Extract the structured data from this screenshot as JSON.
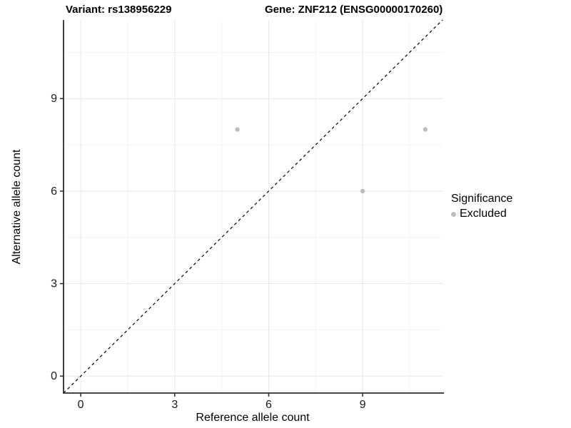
{
  "titles": {
    "variant": "Variant: rs138956229",
    "gene": "Gene: ZNF212 (ENSG00000170260)"
  },
  "legend": {
    "title": "Significance",
    "items": [
      {
        "label": "Excluded",
        "color": "#bdbdbd"
      }
    ]
  },
  "chart_data": {
    "type": "scatter",
    "title": "Variant: rs138956229 | Gene: ZNF212 (ENSG00000170260)",
    "xlabel": "Reference allele count",
    "ylabel": "Alternative allele count",
    "series": [
      {
        "name": "Excluded",
        "color": "#bdbdbd",
        "points": [
          [
            5,
            8
          ],
          [
            9,
            6
          ],
          [
            11,
            8
          ]
        ]
      }
    ],
    "x_ticks": [
      0,
      3,
      6,
      9
    ],
    "y_ticks": [
      0,
      3,
      6,
      9
    ],
    "x_minor_ticks": [
      1.5,
      4.5,
      7.5,
      10.5
    ],
    "y_minor_ticks": [
      1.5,
      4.5,
      7.5,
      10.5
    ],
    "xlim": [
      -0.55,
      11.55
    ],
    "ylim": [
      -0.55,
      11.55
    ],
    "grid": true,
    "legend_position": "right",
    "reference_line": {
      "type": "identity",
      "style": "dashed",
      "color": "#000000"
    },
    "colors": {
      "point": "#bdbdbd",
      "grid_major": "#e7e7e7",
      "grid_minor": "#f3f3f3",
      "axis_line": "#2b2b2b",
      "tick_text": "#1a1a1a"
    }
  }
}
